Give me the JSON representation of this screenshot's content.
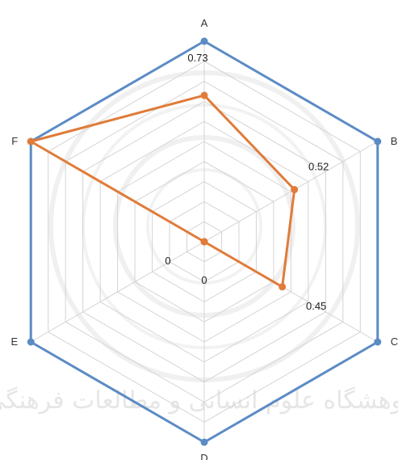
{
  "chart_data": {
    "type": "radar",
    "axes": [
      "A",
      "B",
      "C",
      "D",
      "E",
      "F"
    ],
    "range": [
      0,
      1
    ],
    "grid_levels": 10,
    "grid": true,
    "series": [
      {
        "values": [
          1,
          1,
          1,
          1,
          1,
          1
        ],
        "color": "#5b8bc5",
        "data_labels": [
          "",
          "",
          "",
          "",
          "",
          ""
        ]
      },
      {
        "values": [
          0.73,
          0.52,
          0.45,
          0,
          0,
          1
        ],
        "color": "#e07b39",
        "data_labels": [
          "0.73",
          "0.52",
          "0.45",
          "0",
          "0",
          ""
        ]
      }
    ],
    "watermark": "پژوهشگاه علوم انسانی و مطالعات فرهنگی"
  }
}
